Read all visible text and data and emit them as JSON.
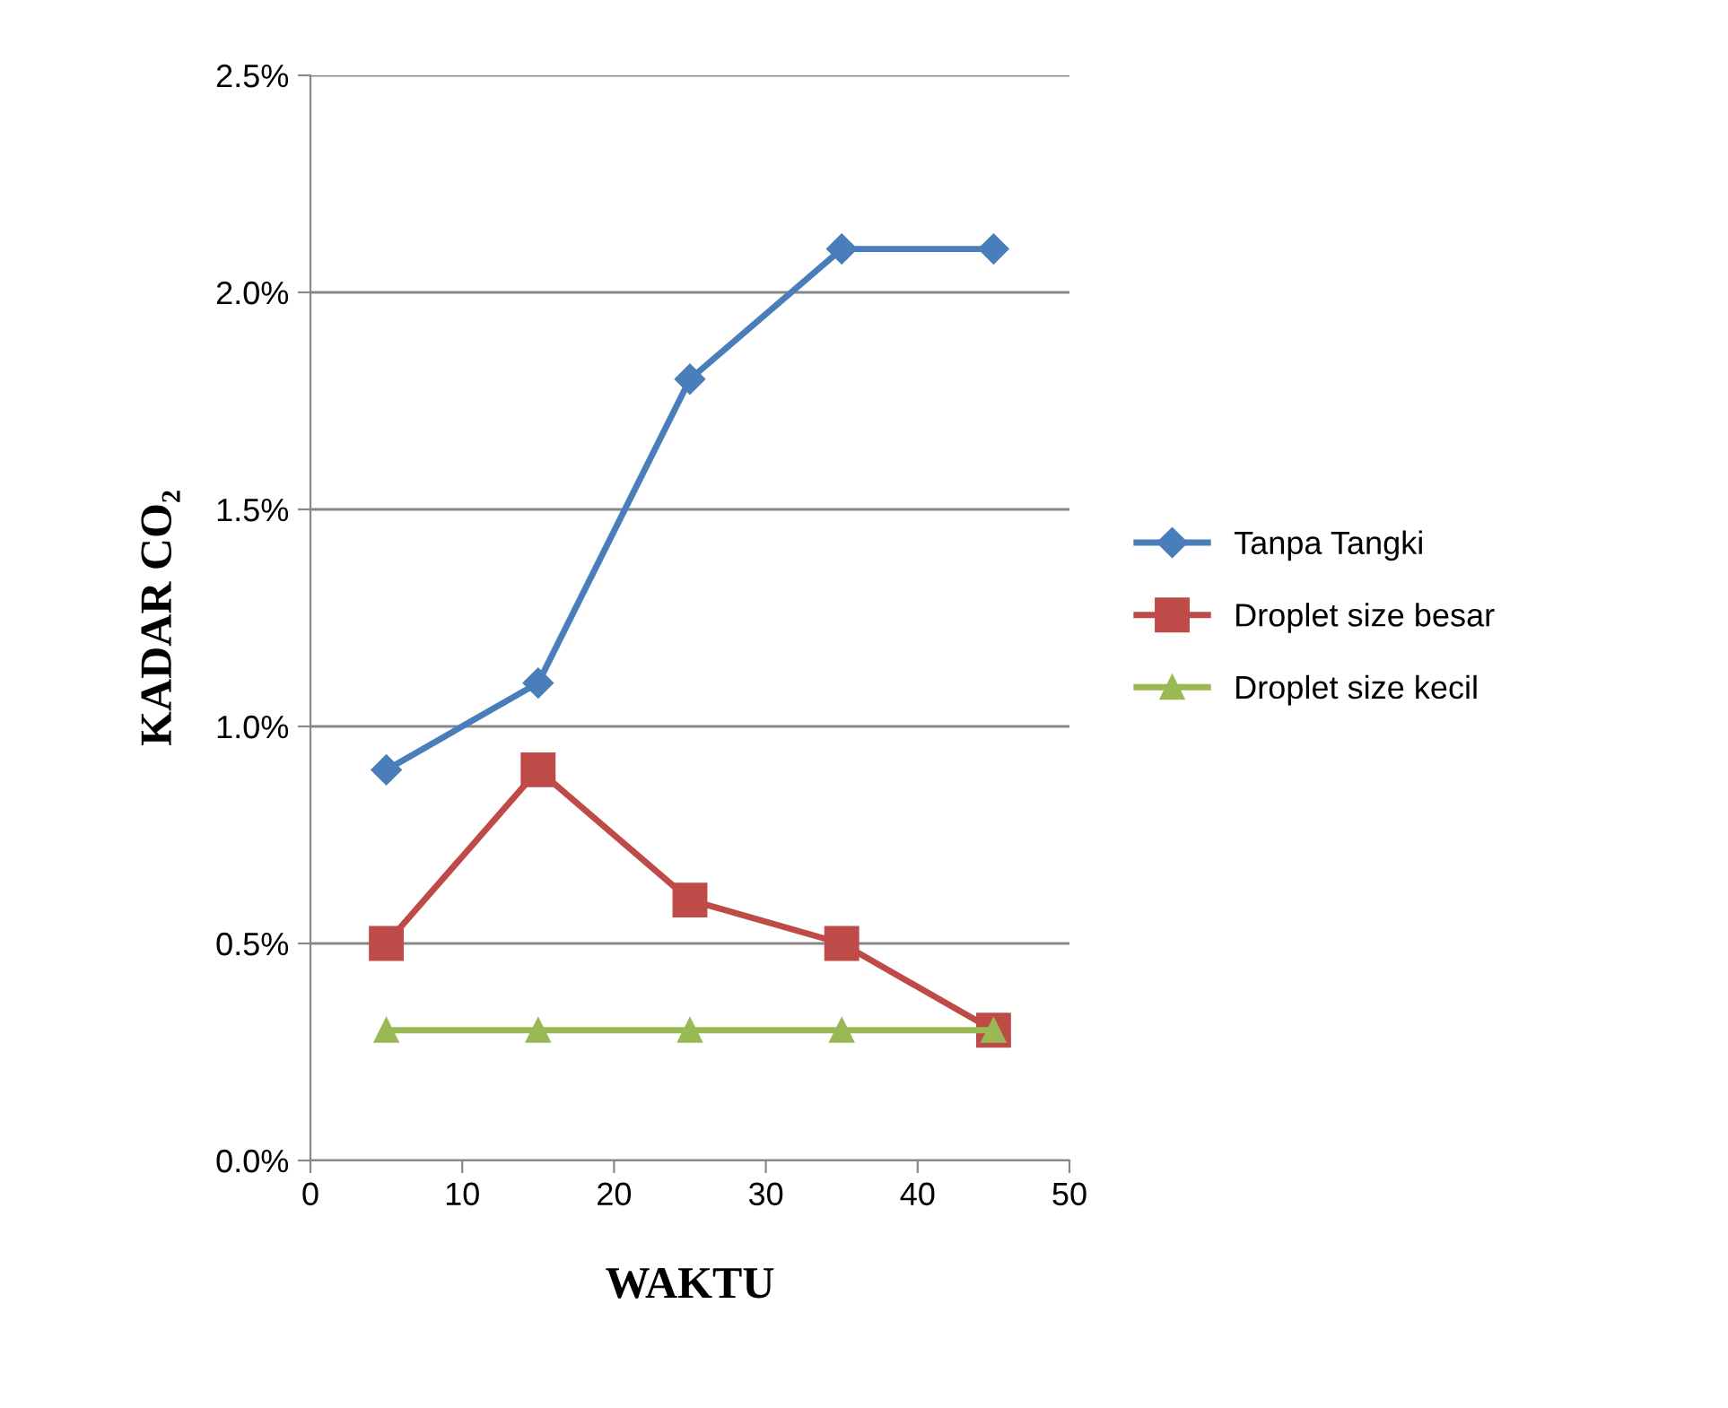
{
  "chart_data": {
    "type": "line",
    "xlabel": "WAKTU",
    "ylabel": "KADAR CO₂",
    "x": [
      5,
      15,
      25,
      35,
      45
    ],
    "series": [
      {
        "name": "Tanpa Tangki",
        "color": "#4a7ebb",
        "marker": "diamond",
        "values": [
          0.9,
          1.1,
          1.8,
          2.1,
          2.1
        ]
      },
      {
        "name": "Droplet size besar",
        "color": "#be4b48",
        "marker": "square",
        "values": [
          0.5,
          0.9,
          0.6,
          0.5,
          0.3
        ]
      },
      {
        "name": "Droplet size kecil",
        "color": "#98b954",
        "marker": "triangle",
        "values": [
          0.3,
          0.3,
          0.3,
          0.3,
          0.3
        ]
      }
    ],
    "xlim": [
      0,
      50
    ],
    "xticks": [
      0,
      10,
      20,
      30,
      40,
      50
    ],
    "ylim": [
      0,
      2.5
    ],
    "yticks": [
      {
        "value": 0,
        "label": "0.0%"
      },
      {
        "value": 0.5,
        "label": "0.5%"
      },
      {
        "value": 1.0,
        "label": "1.0%"
      },
      {
        "value": 1.5,
        "label": "1.5%"
      },
      {
        "value": 2.0,
        "label": "2.0%"
      },
      {
        "value": 2.5,
        "label": "2.5%"
      }
    ],
    "grid": "y",
    "legend": "right",
    "line_style": "solid"
  }
}
